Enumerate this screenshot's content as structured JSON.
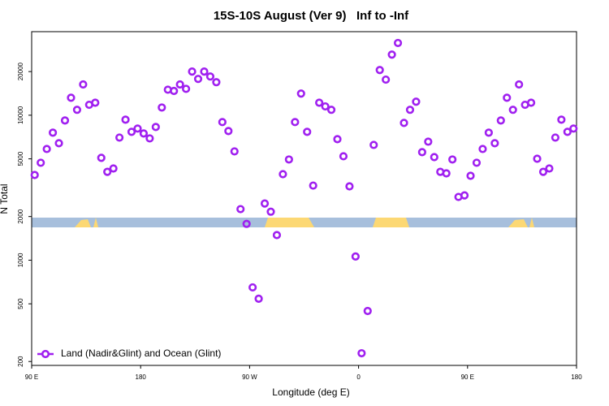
{
  "chart_data": {
    "type": "scatter",
    "title": "15S-10S August (Ver 9)   Inf to -Inf",
    "x_label": "Longitude (deg E)",
    "y_label": "N Total",
    "x": [
      92.5,
      97.5,
      102.5,
      107.5,
      112.5,
      117.5,
      122.5,
      127.5,
      132.5,
      137.5,
      142.5,
      147.5,
      152.5,
      157.5,
      162.5,
      167.5,
      172.5,
      177.5,
      182.5,
      187.5,
      192.5,
      197.5,
      202.5,
      207.5,
      212.5,
      217.5,
      222.5,
      227.5,
      232.5,
      237.5,
      242.5,
      247.5,
      252.5,
      257.5,
      262.5,
      267.5,
      272.5,
      277.5,
      282.5,
      287.5,
      292.5,
      297.5,
      302.5,
      307.5,
      312.5,
      317.5,
      322.5,
      327.5,
      332.5,
      337.5,
      342.5,
      347.5,
      352.5,
      357.5,
      362.5,
      367.5,
      372.5,
      377.5,
      382.5,
      387.5,
      392.5,
      397.5,
      402.5,
      407.5,
      412.5,
      417.5,
      422.5,
      427.5,
      432.5,
      437.5,
      442.5,
      447.5,
      452.5,
      457.5,
      462.5,
      467.5,
      472.5,
      477.5,
      482.5,
      487.5,
      492.5,
      497.5,
      502.5,
      507.5,
      512.5,
      517.5,
      522.5,
      527.5,
      532.5,
      537.5
    ],
    "series": [
      {
        "name": "Land (Nadir&Glint) and Ocean (Glint)",
        "color": "#a020f0",
        "values": [
          3870,
          4700,
          5850,
          7580,
          6410,
          9200,
          13200,
          10900,
          16300,
          11800,
          12200,
          5080,
          4070,
          4290,
          7010,
          9320,
          7680,
          8090,
          7480,
          6920,
          8300,
          11300,
          15000,
          14700,
          16300,
          15200,
          20000,
          17800,
          20000,
          18500,
          16900,
          8970,
          7780,
          5630,
          2250,
          1780,
          649,
          542,
          2460,
          2160,
          1490,
          3920,
          4950,
          8970,
          14100,
          7680,
          3270,
          12200,
          11500,
          10900,
          6840,
          5210,
          3230,
          1060,
          228,
          446,
          6240,
          20500,
          17600,
          26200,
          31500,
          8850,
          10900,
          12400,
          5560,
          6570,
          5140,
          4070,
          3970,
          4950,
          2730,
          2800,
          3820,
          4700,
          5850,
          7580,
          6410,
          9200,
          13200,
          10900,
          16300,
          11800,
          12200,
          5010,
          4070,
          4290,
          7010,
          9320,
          7680,
          8090
        ]
      }
    ],
    "xlim": [
      90,
      540
    ],
    "xticks": [
      {
        "value": 90,
        "label": "90 E"
      },
      180,
      {
        "value": 270,
        "label": "90 W"
      },
      {
        "value": 360,
        "label": "0"
      },
      {
        "value": 450,
        "label": "90 E"
      },
      {
        "value": 540,
        "label": "180"
      }
    ],
    "ylim": [
      188,
      37700
    ],
    "y_log": true,
    "yticks": [
      200,
      500,
      1000,
      2000,
      5000,
      10000,
      20000
    ],
    "legend": "bottom-left"
  }
}
